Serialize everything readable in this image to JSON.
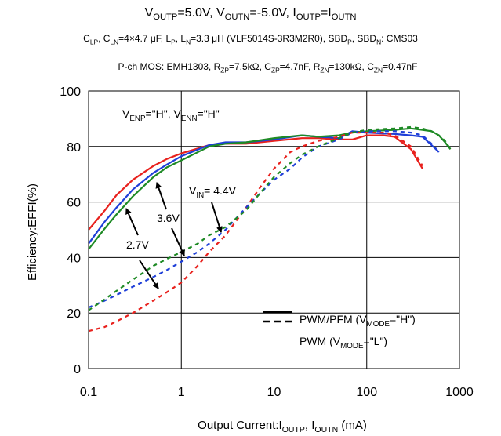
{
  "header": {
    "title": [
      {
        "t": "V"
      },
      {
        "s": "OUTP"
      },
      {
        "t": "=5.0V, V"
      },
      {
        "s": "OUTN"
      },
      {
        "t": "=-5.0V, I"
      },
      {
        "s": "OUTP"
      },
      {
        "t": "=I"
      },
      {
        "s": "OUTN"
      }
    ],
    "subtitle1": [
      {
        "t": "C"
      },
      {
        "s": "LP"
      },
      {
        "t": ", C"
      },
      {
        "s": "LN"
      },
      {
        "t": "=4×4.7 μF, L"
      },
      {
        "s": "P"
      },
      {
        "t": ", L"
      },
      {
        "s": "N"
      },
      {
        "t": "=3.3 μH (VLF5014S-3R3M2R0), SBD"
      },
      {
        "s": "P"
      },
      {
        "t": ", SBD"
      },
      {
        "s": "N"
      },
      {
        "t": ": CMS03"
      }
    ],
    "subtitle2": [
      {
        "t": "P-ch MOS: EMH1303, R"
      },
      {
        "s": "ZP"
      },
      {
        "t": "=7.5kΩ, C"
      },
      {
        "s": "ZP"
      },
      {
        "t": "=4.7nF, R"
      },
      {
        "s": "ZN"
      },
      {
        "t": "=130kΩ, C"
      },
      {
        "s": "ZN"
      },
      {
        "t": "=0.47nF"
      }
    ]
  },
  "chart_data": {
    "type": "line",
    "xscale": "log",
    "xlim": [
      0.1,
      1000
    ],
    "ylim": [
      0,
      100
    ],
    "x_ticks": [
      0.1,
      1,
      10,
      100,
      1000
    ],
    "x_tick_labels": [
      "0.1",
      "1",
      "10",
      "100",
      "1000"
    ],
    "y_ticks": [
      0,
      20,
      40,
      60,
      80,
      100
    ],
    "y_tick_labels": [
      "0",
      "20",
      "40",
      "60",
      "80",
      "100"
    ],
    "grid": true,
    "xlabel": [
      {
        "t": "Output Current:I"
      },
      {
        "s": "OUTP"
      },
      {
        "t": ", I"
      },
      {
        "s": "OUTN"
      },
      {
        "t": " (mA)"
      }
    ],
    "ylabel": "Efficiency:EFFI(%)",
    "colors": {
      "2.7V": "#e8211d",
      "3.6V": "#1f3fd8",
      "4.4V": "#1e8a25"
    },
    "series": [
      {
        "vin": "2.7V",
        "mode": "PWM/PFM",
        "style": "solid",
        "x": [
          0.1,
          0.15,
          0.2,
          0.3,
          0.5,
          0.7,
          1,
          2,
          3,
          5,
          10,
          20,
          30,
          50,
          70,
          100,
          150,
          200,
          300,
          400
        ],
        "y": [
          50,
          57,
          62.5,
          68,
          73,
          75.5,
          77.5,
          80.5,
          81,
          81,
          82,
          83,
          83,
          82.5,
          82.5,
          84,
          84,
          83.5,
          79,
          72
        ]
      },
      {
        "vin": "3.6V",
        "mode": "PWM/PFM",
        "style": "solid",
        "x": [
          0.1,
          0.15,
          0.2,
          0.3,
          0.5,
          0.7,
          1,
          2,
          3,
          5,
          10,
          20,
          30,
          50,
          70,
          100,
          200,
          300,
          400,
          500,
          600
        ],
        "y": [
          45,
          53,
          58,
          64.5,
          70.5,
          73.5,
          76.5,
          80.5,
          81.5,
          81.5,
          82.5,
          84,
          83.5,
          83,
          85.5,
          85,
          84.5,
          84,
          83.5,
          80.5,
          78
        ]
      },
      {
        "vin": "4.4V",
        "mode": "PWM/PFM",
        "style": "solid",
        "x": [
          0.1,
          0.15,
          0.2,
          0.3,
          0.5,
          0.7,
          1,
          2,
          3,
          5,
          10,
          20,
          30,
          50,
          70,
          100,
          200,
          300,
          400,
          500,
          600,
          700,
          800
        ],
        "y": [
          43,
          50.5,
          55.5,
          62,
          69,
          72.5,
          75,
          80,
          81,
          81.5,
          83,
          84,
          83.5,
          84,
          85,
          85.5,
          86,
          86.5,
          86,
          85.5,
          84,
          81.5,
          79
        ]
      },
      {
        "vin": "2.7V",
        "mode": "PWM",
        "style": "dashed",
        "x": [
          0.1,
          0.15,
          0.2,
          0.3,
          0.5,
          0.7,
          1,
          1.5,
          2,
          3,
          5,
          7,
          10,
          15,
          20,
          30,
          50,
          70,
          100,
          150,
          200,
          300,
          400
        ],
        "y": [
          13.5,
          15,
          17,
          20,
          24.5,
          27.5,
          31,
          37,
          42,
          48,
          58,
          65,
          72,
          78,
          80,
          82,
          83.5,
          85,
          85,
          85,
          84,
          80,
          73
        ]
      },
      {
        "vin": "3.6V",
        "mode": "PWM",
        "style": "dashed",
        "x": [
          0.1,
          0.15,
          0.2,
          0.3,
          0.5,
          0.7,
          1,
          1.5,
          2,
          3,
          5,
          7,
          10,
          15,
          20,
          30,
          50,
          70,
          100,
          200,
          300,
          400,
          500,
          600
        ],
        "y": [
          22,
          24.5,
          26.5,
          29.5,
          33,
          35.5,
          38.5,
          42,
          45,
          50,
          58,
          63,
          68,
          72,
          76,
          80,
          82.5,
          85,
          85.5,
          85.5,
          85,
          84,
          81,
          78
        ]
      },
      {
        "vin": "4.4V",
        "mode": "PWM",
        "style": "dashed",
        "x": [
          0.1,
          0.15,
          0.2,
          0.3,
          0.5,
          0.7,
          1,
          1.5,
          2,
          3,
          5,
          7,
          10,
          15,
          20,
          30,
          50,
          70,
          100,
          200,
          300,
          400,
          500,
          600,
          700,
          800
        ],
        "y": [
          21,
          25,
          28,
          32,
          37,
          39.5,
          42,
          45,
          48,
          51,
          57,
          63,
          69,
          74,
          77,
          80,
          83,
          85,
          86,
          86.5,
          87,
          86.5,
          85.5,
          84,
          82,
          79
        ]
      }
    ],
    "annotations": {
      "condition": [
        {
          "t": "V"
        },
        {
          "s": "ENP"
        },
        {
          "t": "=\"H\", V"
        },
        {
          "s": "ENN"
        },
        {
          "t": "=\"H\""
        }
      ],
      "vin44": [
        {
          "t": "V"
        },
        {
          "s": "IN"
        },
        {
          "t": "= 4.4V"
        }
      ],
      "vin36": "3.6V",
      "vin27": "2.7V"
    },
    "legend": {
      "position": "bottom-right",
      "entries": [
        {
          "style": "solid",
          "label": [
            {
              "t": "PWM/PFM (V"
            },
            {
              "s": "MODE"
            },
            {
              "t": "=\"H\")"
            }
          ]
        },
        {
          "style": "dashed",
          "label": [
            {
              "t": "PWM (V"
            },
            {
              "s": "MODE"
            },
            {
              "t": "=\"L\")"
            }
          ]
        }
      ]
    }
  }
}
